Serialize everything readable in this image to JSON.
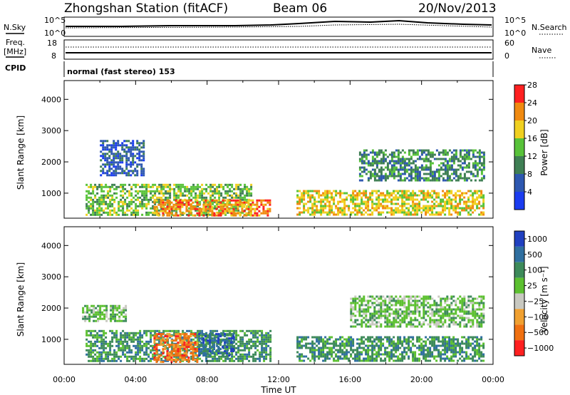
{
  "header": {
    "station": "Zhongshan Station (fitACF)",
    "beam": "Beam 06",
    "date": "20/Nov/2013"
  },
  "summary_panel": {
    "left_label_1": "N.Sky",
    "left_ticks_1": [
      "10^5",
      "10^0"
    ],
    "right_ticks_1": [
      "10^5",
      "10^0"
    ],
    "right_label_1": "N.Search",
    "left_label_2a": "Freq.",
    "left_label_2b": "[MHz]",
    "left_ticks_2": [
      "18",
      "8"
    ],
    "right_ticks_2": [
      "60",
      "0"
    ],
    "right_label_2": "Nave",
    "cpid_label": "CPID",
    "cpid_text": "normal (fast stereo) 153"
  },
  "x_axis": {
    "label": "Time UT",
    "ticks": [
      "00:00",
      "04:00",
      "08:00",
      "12:00",
      "16:00",
      "20:00",
      "00:00"
    ]
  },
  "power_panel": {
    "ylabel": "Slant Range [km]",
    "yticks": [
      "1000",
      "2000",
      "3000",
      "4000"
    ],
    "colorbar_label": "Power [dB]",
    "colorbar_ticks": [
      "4",
      "8",
      "12",
      "16",
      "20",
      "24",
      "28"
    ]
  },
  "velocity_panel": {
    "ylabel": "Slant Range [km]",
    "yticks": [
      "1000",
      "2000",
      "3000",
      "4000"
    ],
    "colorbar_label": "Velocity [m s⁻¹]",
    "colorbar_ticks": [
      "1000",
      "500",
      "100",
      "25",
      "−25",
      "−100",
      "−500",
      "−1000"
    ]
  },
  "chart_data": [
    {
      "type": "heatmap",
      "title": "",
      "xlabel": "Time UT",
      "ylabel": "Slant Range [km]",
      "x_range": [
        "00:00",
        "24:00"
      ],
      "ylim": [
        200,
        4600
      ],
      "color_scale_label": "Power [dB]",
      "color_scale_ticks": [
        4,
        8,
        12,
        16,
        20,
        24,
        28
      ],
      "colors": [
        "#1a3cf0",
        "#2d57b0",
        "#3f7f54",
        "#58c23a",
        "#f0d020",
        "#f08a10",
        "#ff2020"
      ],
      "echo_regions": [
        {
          "t_start": 1.2,
          "t_end": 10.5,
          "range_start": 300,
          "range_end": 1300,
          "power_db": 16
        },
        {
          "t_start": 2.0,
          "t_end": 4.5,
          "range_start": 1600,
          "range_end": 2700,
          "power_db": 8
        },
        {
          "t_start": 5.0,
          "t_end": 11.5,
          "range_start": 300,
          "range_end": 800,
          "power_db": 22
        },
        {
          "t_start": 13.0,
          "t_end": 23.5,
          "range_start": 300,
          "range_end": 1100,
          "power_db": 18
        },
        {
          "t_start": 16.5,
          "t_end": 23.5,
          "range_start": 1400,
          "range_end": 2400,
          "power_db": 10
        }
      ]
    },
    {
      "type": "heatmap",
      "title": "",
      "xlabel": "Time UT",
      "ylabel": "Slant Range [km]",
      "x_range": [
        "00:00",
        "24:00"
      ],
      "ylim": [
        200,
        4600
      ],
      "color_scale_label": "Velocity [m s⁻¹]",
      "color_scale_ticks": [
        1000,
        500,
        100,
        25,
        -25,
        -100,
        -500,
        -1000
      ],
      "colors": [
        "#2040c0",
        "#2f6fa0",
        "#3d8a5a",
        "#5cc030",
        "#c8c8c0",
        "#f0a030",
        "#f07010",
        "#ff2020"
      ],
      "echo_regions": [
        {
          "t_start": 1.2,
          "t_end": 11.5,
          "range_start": 300,
          "range_end": 1300,
          "velocity": 100
        },
        {
          "t_start": 5.0,
          "t_end": 7.5,
          "range_start": 300,
          "range_end": 1200,
          "velocity": -500
        },
        {
          "t_start": 7.5,
          "t_end": 9.5,
          "range_start": 500,
          "range_end": 1200,
          "velocity": 500
        },
        {
          "t_start": 1.0,
          "t_end": 3.5,
          "range_start": 1600,
          "range_end": 2100,
          "velocity": 25
        },
        {
          "t_start": 13.0,
          "t_end": 23.5,
          "range_start": 300,
          "range_end": 1100,
          "velocity": 100
        },
        {
          "t_start": 16.0,
          "t_end": 23.5,
          "range_start": 1400,
          "range_end": 2400,
          "velocity": 25
        }
      ]
    }
  ]
}
